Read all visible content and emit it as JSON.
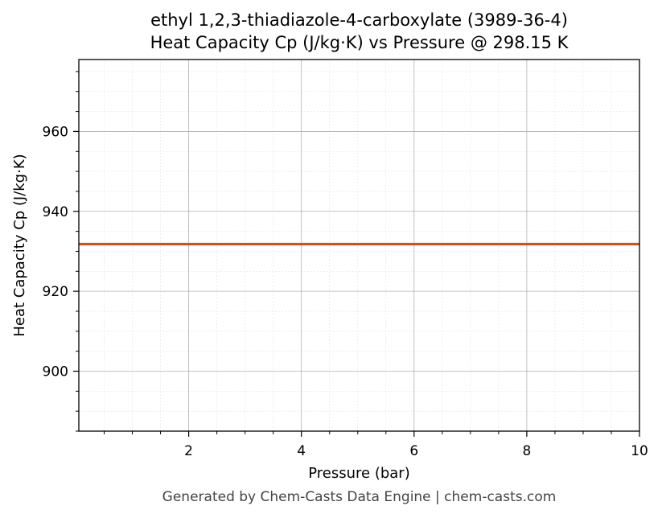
{
  "chart_data": {
    "type": "line",
    "title": "ethyl 1,2,3-thiadiazole-4-carboxylate (3989-36-4)",
    "subtitle": "Heat Capacity Cp (J/kg·K) vs Pressure @ 298.15 K",
    "xlabel": "Pressure (bar)",
    "ylabel": "Heat Capacity Cp (J/kg·K)",
    "xlim": [
      0.05,
      10
    ],
    "ylim": [
      885,
      978
    ],
    "xticks": [
      2,
      4,
      6,
      8,
      10
    ],
    "yticks": [
      900,
      920,
      940,
      960
    ],
    "grid": true,
    "series": [
      {
        "color": "#c8542b",
        "x": [
          0.05,
          1,
          2,
          3,
          4,
          5,
          6,
          7,
          8,
          9,
          10
        ],
        "y": [
          931.8,
          931.8,
          931.8,
          931.8,
          931.8,
          931.8,
          931.8,
          931.8,
          931.8,
          931.8,
          931.8
        ]
      }
    ]
  },
  "footer": "Generated by Chem-Casts Data Engine | chem-casts.com"
}
